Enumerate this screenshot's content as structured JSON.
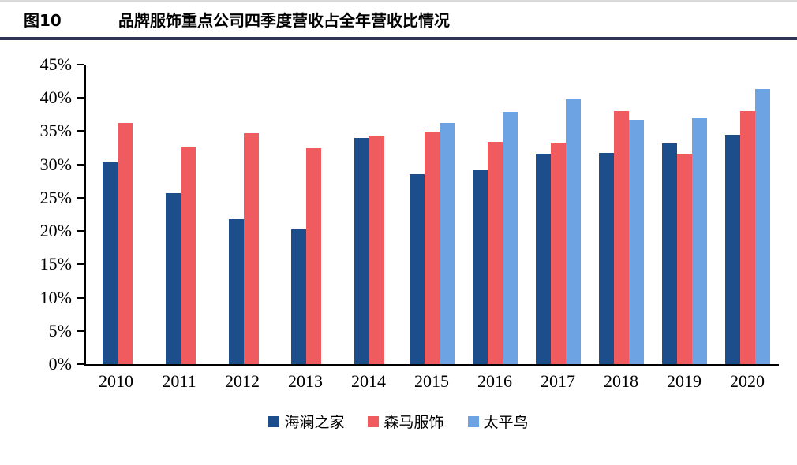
{
  "chart_data": {
    "type": "bar",
    "figure_label": "图10",
    "title": "品牌服饰重点公司四季度营收占全年营收比情况",
    "categories": [
      "2010",
      "2011",
      "2012",
      "2013",
      "2014",
      "2015",
      "2016",
      "2017",
      "2018",
      "2019",
      "2020"
    ],
    "series": [
      {
        "name": "海澜之家",
        "color": "#1b4e8b",
        "values": [
          30.3,
          25.7,
          21.8,
          20.3,
          34.0,
          28.5,
          29.1,
          31.6,
          31.7,
          33.2,
          34.5
        ]
      },
      {
        "name": "森马服饰",
        "color": "#f05b5f",
        "values": [
          36.2,
          32.7,
          34.7,
          32.5,
          34.3,
          34.9,
          33.4,
          33.3,
          38.0,
          31.6,
          38.0
        ]
      },
      {
        "name": "太平鸟",
        "color": "#6da2e3",
        "values": [
          null,
          null,
          null,
          null,
          null,
          36.2,
          37.9,
          39.8,
          36.7,
          37.0,
          41.3
        ]
      }
    ],
    "ylim": [
      0,
      45
    ],
    "ytick_step": 5,
    "ytick_suffix": "%",
    "grid": false,
    "legend_position": "bottom",
    "divider_color": "#2f3457"
  }
}
